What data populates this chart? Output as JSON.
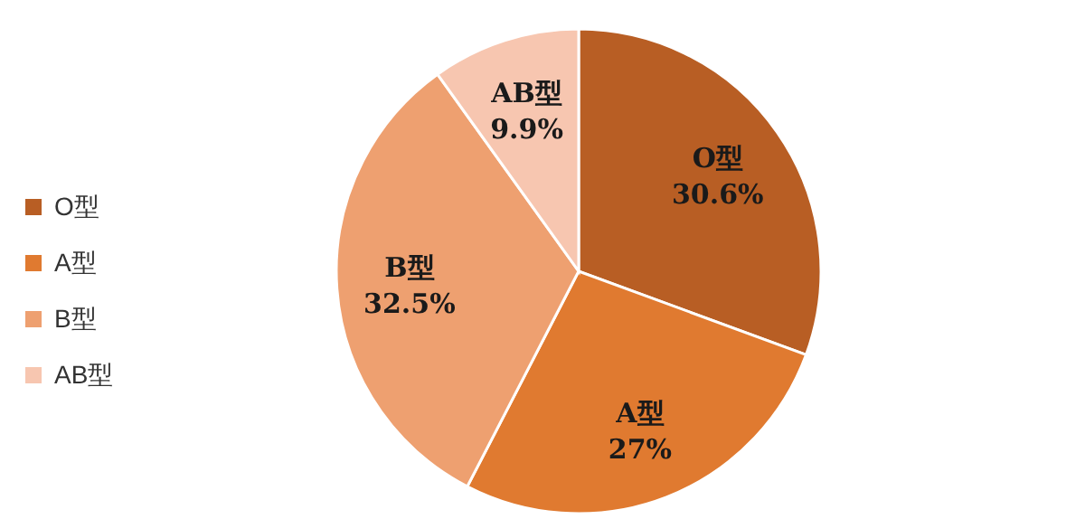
{
  "chart_data": {
    "type": "pie",
    "categories": [
      "O型",
      "A型",
      "B型",
      "AB型"
    ],
    "values": [
      30.6,
      27,
      32.5,
      9.9
    ],
    "colors": [
      "#b85e24",
      "#e07a30",
      "#eea070",
      "#f7c6b0"
    ],
    "value_labels": [
      "30.6%",
      "27%",
      "32.5%",
      "9.9%"
    ],
    "legend": "left"
  }
}
